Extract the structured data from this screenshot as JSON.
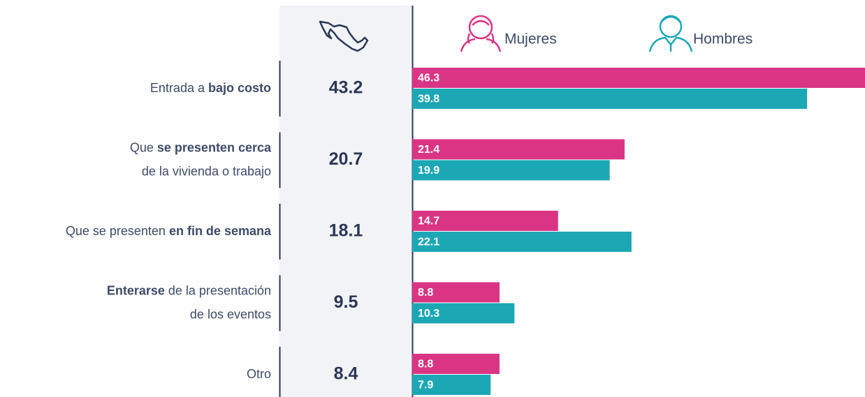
{
  "chart_data": {
    "type": "bar",
    "orientation": "horizontal",
    "categories": [
      [
        [
          {
            "text": "Entrada a "
          },
          {
            "text": "bajo costo",
            "bold": true
          }
        ]
      ],
      [
        [
          {
            "text": "Que "
          },
          {
            "text": "se presenten cerca",
            "bold": true
          }
        ],
        [
          {
            "text": "de la vivienda o trabajo"
          }
        ]
      ],
      [
        [
          {
            "text": "Que se presenten "
          },
          {
            "text": "en fin de semana",
            "bold": true
          }
        ]
      ],
      [
        [
          {
            "text": "Enterarse",
            "bold": true
          },
          {
            "text": " de la presentación"
          }
        ],
        [
          {
            "text": "de los eventos"
          }
        ]
      ],
      [
        [
          {
            "text": "Otro"
          }
        ]
      ]
    ],
    "total": {
      "values": [
        43.2,
        20.7,
        18.1,
        9.5,
        8.4
      ]
    },
    "series": [
      {
        "name": "Mujeres",
        "color": "#da3584",
        "values": [
          46.3,
          21.4,
          14.7,
          8.8,
          8.8
        ]
      },
      {
        "name": "Hombres",
        "color": "#1ca7b5",
        "values": [
          39.8,
          19.9,
          22.1,
          10.3,
          7.9
        ]
      }
    ]
  }
}
